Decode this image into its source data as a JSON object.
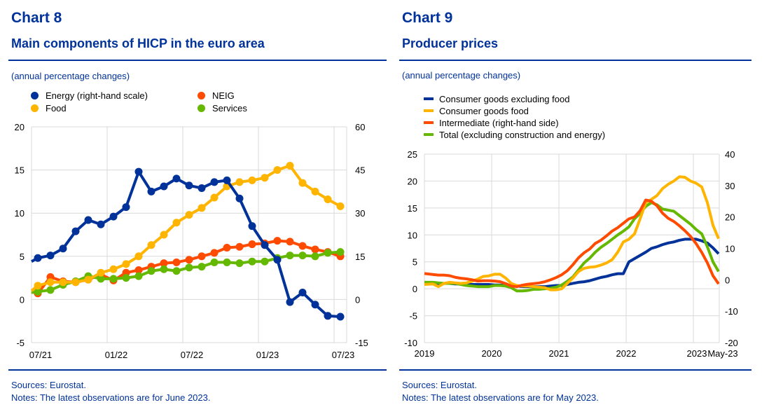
{
  "chart8": {
    "number": "Chart 8",
    "title": "Main components of HICP in the euro area",
    "subtitle": "(annual percentage changes)",
    "legend": [
      {
        "label": "Energy (right-hand scale)",
        "color": "#003299"
      },
      {
        "label": "NEIG",
        "color": "#FF4B00"
      },
      {
        "label": "Food",
        "color": "#FFB400"
      },
      {
        "label": "Services",
        "color": "#65B800"
      }
    ],
    "sources": "Sources: Eurostat.",
    "notes": "Notes: The latest observations are for June 2023."
  },
  "chart9": {
    "number": "Chart 9",
    "title": "Producer prices",
    "subtitle": "(annual percentage changes)",
    "legend": [
      {
        "label": "Consumer goods excluding food",
        "color": "#003299"
      },
      {
        "label": "Consumer goods food",
        "color": "#FFB400"
      },
      {
        "label": "Intermediate (right-hand side)",
        "color": "#FF4B00"
      },
      {
        "label": "Total (excluding construction and energy)",
        "color": "#65B800"
      }
    ],
    "sources": "Sources: Eurostat.",
    "notes": "Notes: The latest observations are for May 2023."
  },
  "chart_data": [
    {
      "type": "line",
      "title": "Main components of HICP in the euro area",
      "subtitle": "(annual percentage changes)",
      "x": [
        "06/21",
        "07/21",
        "08/21",
        "09/21",
        "10/21",
        "11/21",
        "12/21",
        "01/22",
        "02/22",
        "03/22",
        "04/22",
        "05/22",
        "06/22",
        "07/22",
        "08/22",
        "09/22",
        "10/22",
        "11/22",
        "12/22",
        "01/23",
        "02/23",
        "03/23",
        "04/23",
        "05/23",
        "06/23"
      ],
      "x_ticks": [
        "07/21",
        "01/22",
        "07/22",
        "01/23",
        "07/23"
      ],
      "y_left": {
        "range": [
          -5,
          20
        ],
        "ticks": [
          -5,
          0,
          5,
          10,
          15,
          20
        ]
      },
      "y_right": {
        "range": [
          -15,
          60
        ],
        "ticks": [
          -15,
          0,
          15,
          30,
          45,
          60
        ]
      },
      "grid": true,
      "legend_position": "top",
      "series": [
        {
          "name": "Energy (right-hand scale)",
          "axis": "right",
          "color": "#003299",
          "lead": 13.2,
          "values": [
            14.4,
            15.3,
            17.7,
            23.7,
            27.6,
            26.1,
            28.8,
            32.1,
            44.4,
            37.5,
            39.3,
            42.0,
            39.6,
            38.7,
            40.8,
            41.4,
            35.1,
            25.5,
            18.9,
            13.8,
            -0.9,
            2.4,
            -1.8,
            -5.7,
            -6.0
          ]
        },
        {
          "name": "Food",
          "axis": "left",
          "color": "#FFB400",
          "lead": 1.0,
          "values": [
            1.6,
            2.0,
            2.0,
            2.0,
            2.3,
            3.1,
            3.5,
            4.1,
            5.0,
            6.3,
            7.5,
            8.9,
            9.8,
            10.6,
            11.8,
            13.1,
            13.6,
            13.8,
            14.1,
            15.0,
            15.5,
            13.5,
            12.5,
            11.6,
            10.8
          ]
        },
        {
          "name": "NEIG",
          "axis": "left",
          "color": "#FF4B00",
          "lead": 0.9,
          "values": [
            0.7,
            2.6,
            2.1,
            2.0,
            2.3,
            2.9,
            2.2,
            3.1,
            3.4,
            3.8,
            4.2,
            4.3,
            4.6,
            5.0,
            5.4,
            6.0,
            6.1,
            6.4,
            6.5,
            6.8,
            6.7,
            6.2,
            5.8,
            5.5,
            5.0
          ]
        },
        {
          "name": "Services",
          "axis": "left",
          "color": "#65B800",
          "lead": 0.8,
          "values": [
            0.9,
            1.1,
            1.7,
            2.1,
            2.7,
            2.4,
            2.4,
            2.5,
            2.7,
            3.3,
            3.5,
            3.3,
            3.7,
            3.8,
            4.3,
            4.3,
            4.2,
            4.4,
            4.4,
            4.8,
            5.1,
            5.1,
            5.0,
            5.4,
            5.5
          ]
        }
      ]
    },
    {
      "type": "line",
      "title": "Producer prices",
      "subtitle": "(annual percentage changes)",
      "x_start": "2019-01",
      "x_end": "2023-05",
      "x_ticks": [
        "2019",
        "2020",
        "2021",
        "2022",
        "2023",
        "May-23"
      ],
      "y_left": {
        "range": [
          -10,
          25
        ],
        "ticks": [
          -10,
          -5,
          0,
          5,
          10,
          15,
          20,
          25
        ]
      },
      "y_right": {
        "range": [
          -20,
          40
        ],
        "ticks": [
          -20,
          -10,
          0,
          10,
          20,
          30,
          40
        ]
      },
      "grid": true,
      "legend_position": "top",
      "series": [
        {
          "name": "Consumer goods excluding food",
          "axis": "left",
          "color": "#003299",
          "values": [
            1.0,
            1.0,
            1.0,
            1.0,
            1.0,
            0.9,
            0.9,
            0.9,
            0.8,
            0.8,
            0.8,
            0.8,
            0.7,
            0.7,
            0.6,
            0.5,
            0.5,
            0.4,
            0.4,
            0.4,
            0.4,
            0.4,
            0.5,
            0.6,
            0.6,
            0.8,
            1.0,
            1.2,
            1.3,
            1.5,
            1.8,
            2.1,
            2.3,
            2.6,
            2.8,
            2.8,
            5.0,
            5.6,
            6.2,
            6.8,
            7.5,
            7.8,
            8.2,
            8.5,
            8.7,
            9.0,
            9.2,
            9.2,
            9.2,
            8.9,
            8.5,
            7.6,
            6.5
          ]
        },
        {
          "name": "Consumer goods food",
          "axis": "left",
          "color": "#FFB400",
          "values": [
            0.8,
            0.9,
            0.4,
            1.0,
            1.2,
            1.1,
            1.0,
            1.1,
            1.4,
            1.8,
            2.3,
            2.4,
            2.7,
            2.7,
            2.0,
            1.0,
            0.6,
            0.5,
            0.5,
            0.4,
            0.3,
            0.2,
            -0.2,
            -0.2,
            0.0,
            1.0,
            2.0,
            3.2,
            3.8,
            4.0,
            4.1,
            4.4,
            4.8,
            5.4,
            6.8,
            8.7,
            9.2,
            10.2,
            13.0,
            16.0,
            16.6,
            17.3,
            18.6,
            19.4,
            20.0,
            20.8,
            20.7,
            20.0,
            19.6,
            18.9,
            16.0,
            11.8,
            9.3
          ]
        },
        {
          "name": "Intermediate (right-hand side)",
          "axis": "right",
          "color": "#FF4B00",
          "values": [
            2.0,
            1.7,
            1.5,
            1.5,
            1.3,
            0.8,
            0.5,
            0.3,
            0.0,
            -0.4,
            -0.3,
            -0.3,
            -0.4,
            -0.6,
            -1.2,
            -2.0,
            -2.2,
            -1.7,
            -1.4,
            -1.2,
            -1.0,
            -0.6,
            0.0,
            0.7,
            1.6,
            2.9,
            4.8,
            7.0,
            8.6,
            9.8,
            11.6,
            12.6,
            14.0,
            15.5,
            16.6,
            18.0,
            19.4,
            20.0,
            22.0,
            25.4,
            25.0,
            23.6,
            21.2,
            19.6,
            18.6,
            17.2,
            15.6,
            13.8,
            11.5,
            8.7,
            5.4,
            1.3,
            -1.3
          ]
        },
        {
          "name": "Total (excluding construction and energy)",
          "axis": "left",
          "color": "#65B800",
          "values": [
            1.2,
            1.2,
            1.1,
            1.0,
            1.0,
            1.0,
            0.8,
            0.6,
            0.5,
            0.4,
            0.4,
            0.4,
            0.6,
            0.6,
            0.5,
            0.2,
            -0.4,
            -0.4,
            -0.3,
            -0.1,
            -0.1,
            0.0,
            0.1,
            0.3,
            0.7,
            1.4,
            2.2,
            3.5,
            4.8,
            5.7,
            6.8,
            7.7,
            8.4,
            9.2,
            10.0,
            10.7,
            11.5,
            13.0,
            14.0,
            15.3,
            16.0,
            15.6,
            14.8,
            14.6,
            14.4,
            13.6,
            12.8,
            12.0,
            11.0,
            10.2,
            7.8,
            5.0,
            3.2
          ]
        }
      ]
    }
  ]
}
